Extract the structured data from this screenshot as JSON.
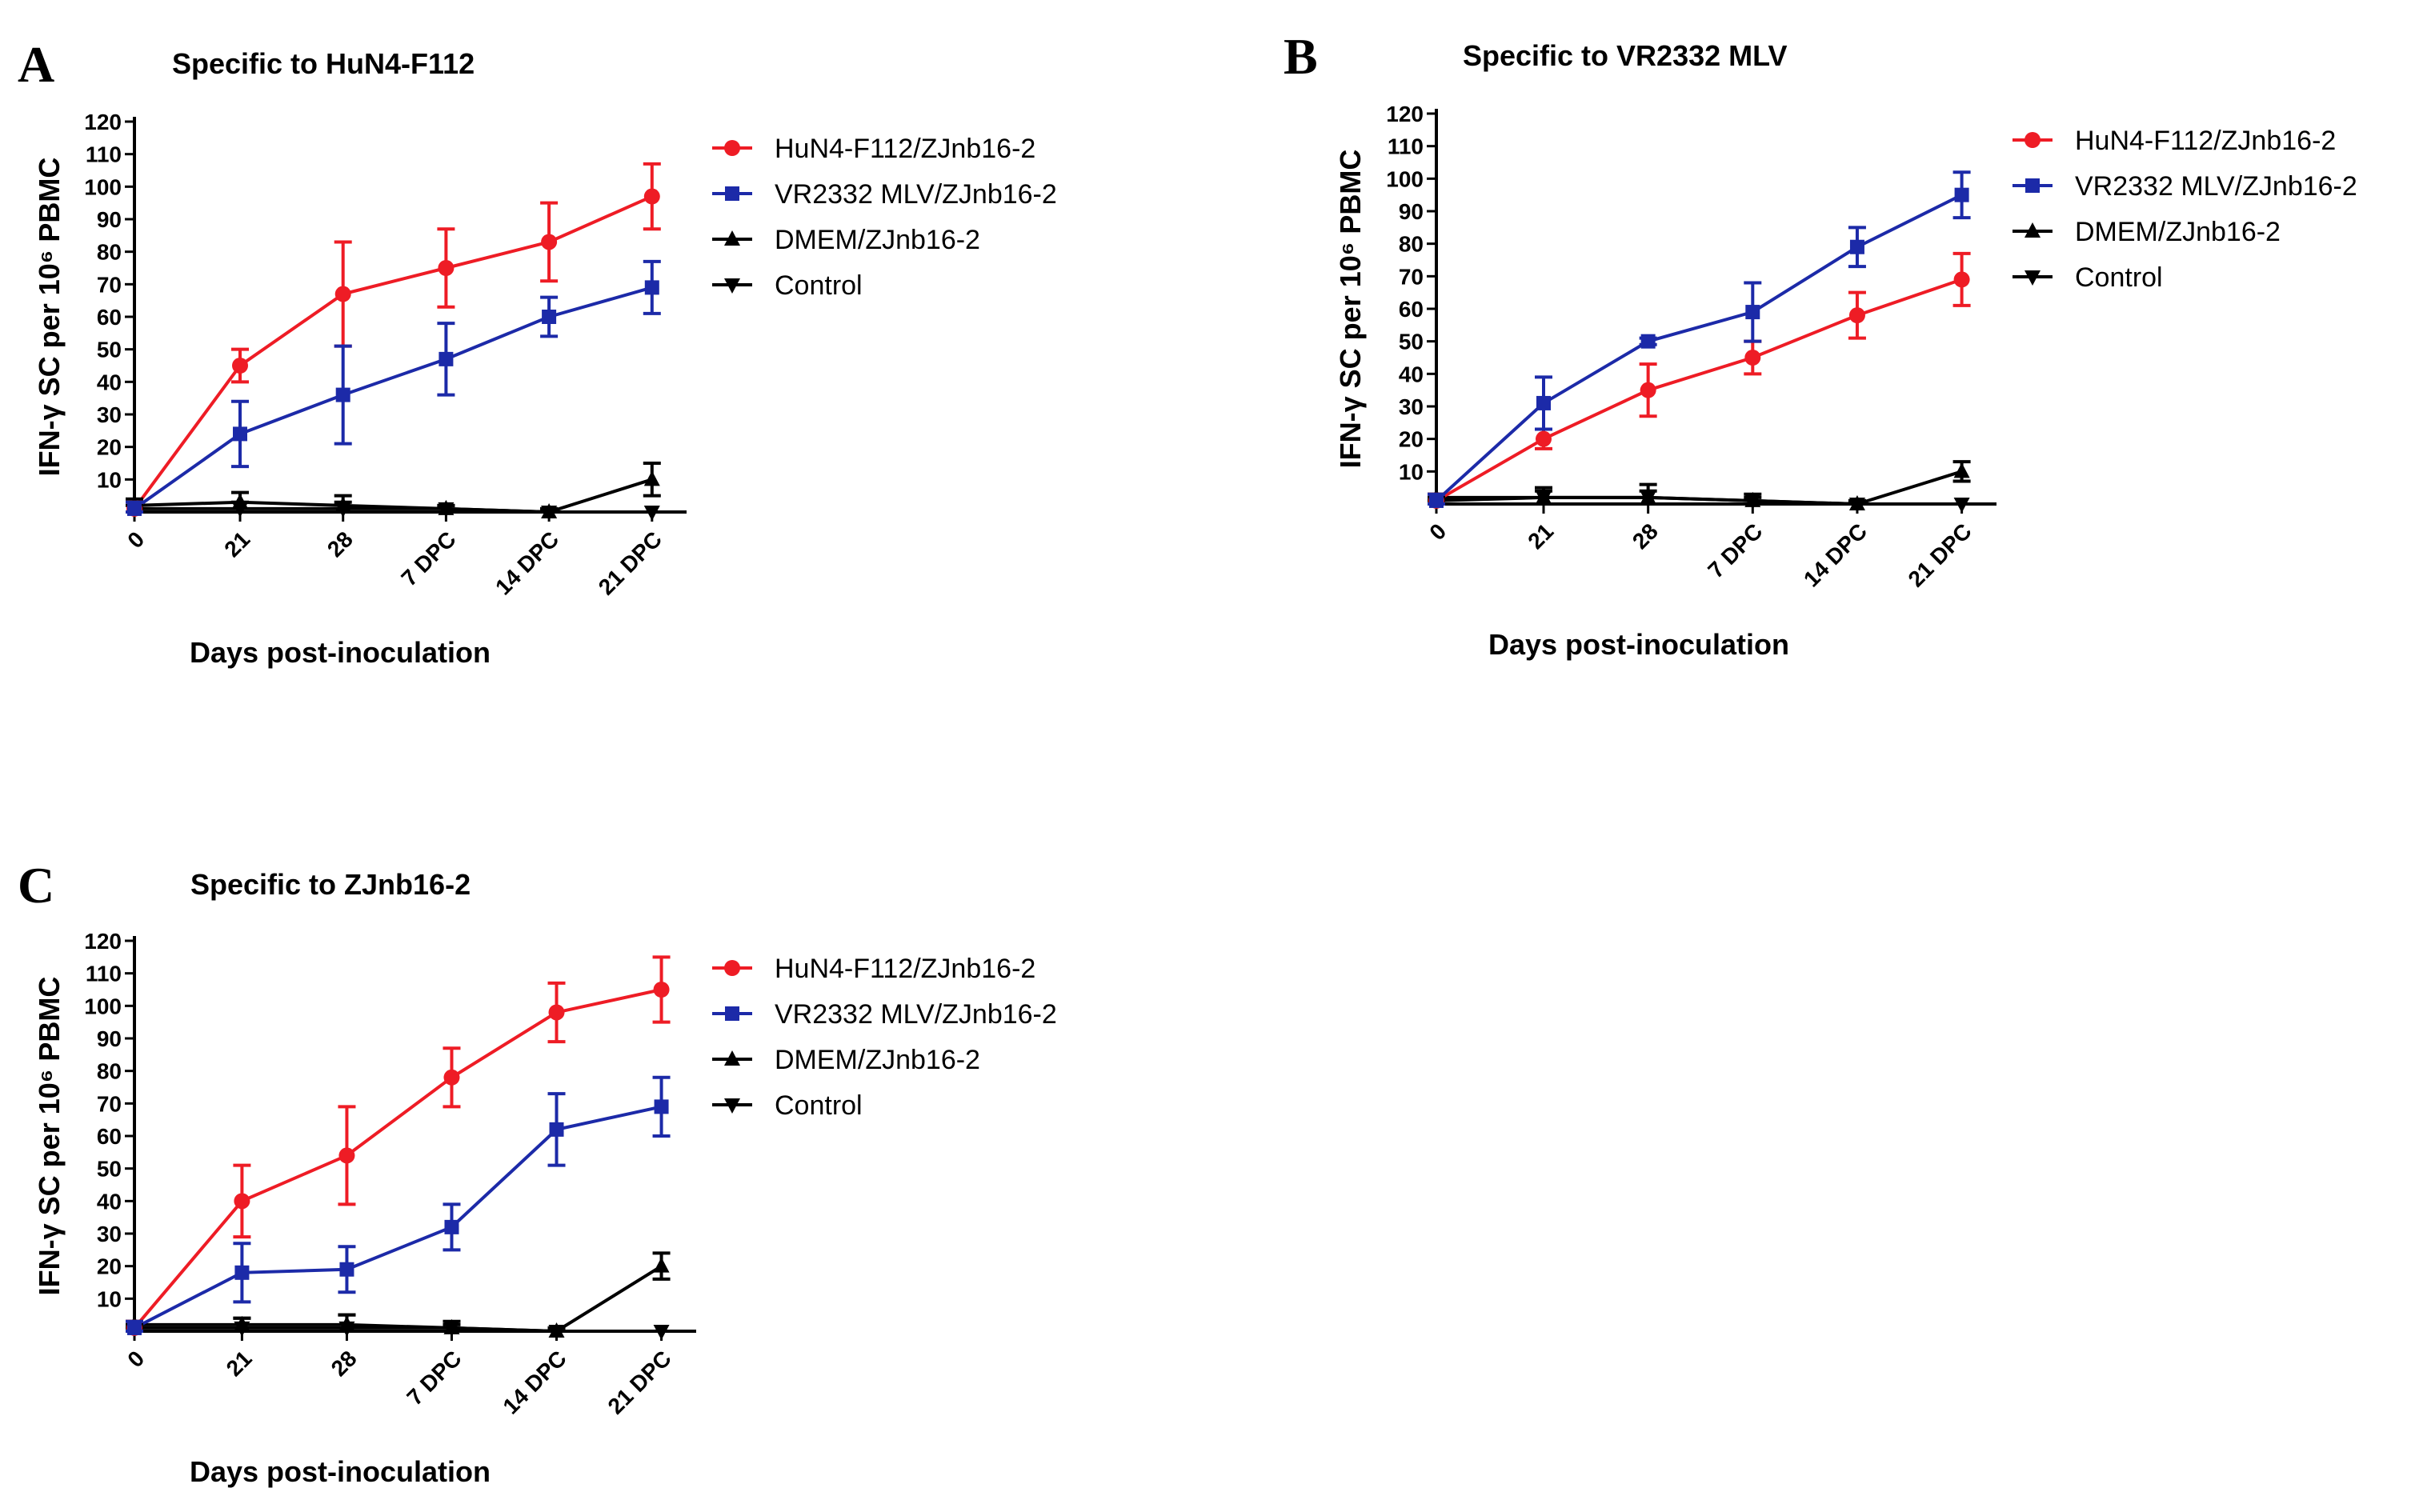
{
  "colors": {
    "HuN4-F112/ZJnb16-2": "#ee1c25",
    "VR2332 MLV/ZJnb16-2": "#1c2aa8",
    "DMEM/ZJnb16-2": "#000000",
    "Control": "#000000"
  },
  "chart_data": [
    {
      "type": "line",
      "panel": "A",
      "title": "Specific to HuN4-F112",
      "xlabel": "Days post-inoculation",
      "ylabel": "IFN-γ SC per 10⁶ PBMC",
      "categories": [
        "0",
        "21",
        "28",
        "7 DPC",
        "14 DPC",
        "21 DPC"
      ],
      "yticks": [
        10,
        20,
        30,
        40,
        50,
        60,
        70,
        80,
        90,
        100,
        110,
        120
      ],
      "ylim": [
        0,
        120
      ],
      "legend_position": "right",
      "series": [
        {
          "name": "HuN4-F112/ZJnb16-2",
          "marker": "circle",
          "values": [
            1,
            45,
            67,
            75,
            83,
            97
          ],
          "errors": [
            2,
            5,
            16,
            12,
            12,
            10
          ]
        },
        {
          "name": "VR2332 MLV/ZJnb16-2",
          "marker": "square",
          "values": [
            1,
            24,
            36,
            47,
            60,
            69
          ],
          "errors": [
            2,
            10,
            15,
            11,
            6,
            8
          ]
        },
        {
          "name": "DMEM/ZJnb16-2",
          "marker": "triangle-up",
          "values": [
            2,
            3,
            2,
            1,
            0,
            10
          ],
          "errors": [
            2,
            3,
            3,
            1,
            1,
            5
          ]
        },
        {
          "name": "Control",
          "marker": "triangle-down",
          "values": [
            1,
            1,
            1,
            1,
            0,
            0
          ],
          "errors": [
            1,
            2,
            2,
            1,
            1,
            0
          ]
        }
      ]
    },
    {
      "type": "line",
      "panel": "B",
      "title": "Specific to VR2332 MLV",
      "xlabel": "Days post-inoculation",
      "ylabel": "IFN-γ SC per 10⁶ PBMC",
      "categories": [
        "0",
        "21",
        "28",
        "7 DPC",
        "14 DPC",
        "21 DPC"
      ],
      "yticks": [
        10,
        20,
        30,
        40,
        50,
        60,
        70,
        80,
        90,
        100,
        110,
        120
      ],
      "ylim": [
        0,
        120
      ],
      "legend_position": "right",
      "series": [
        {
          "name": "HuN4-F112/ZJnb16-2",
          "marker": "circle",
          "values": [
            1,
            20,
            35,
            45,
            58,
            69
          ],
          "errors": [
            2,
            3,
            8,
            5,
            7,
            8
          ]
        },
        {
          "name": "VR2332 MLV/ZJnb16-2",
          "marker": "square",
          "values": [
            1,
            31,
            50,
            59,
            79,
            95
          ],
          "errors": [
            2,
            8,
            1,
            9,
            6,
            7
          ]
        },
        {
          "name": "DMEM/ZJnb16-2",
          "marker": "triangle-up",
          "values": [
            2,
            2,
            2,
            1,
            0,
            10
          ],
          "errors": [
            1,
            2,
            2,
            1,
            1,
            3
          ]
        },
        {
          "name": "Control",
          "marker": "triangle-down",
          "values": [
            1,
            2,
            2,
            1,
            0,
            0
          ],
          "errors": [
            1,
            3,
            4,
            2,
            1,
            0
          ]
        }
      ]
    },
    {
      "type": "line",
      "panel": "C",
      "title": "Specific to ZJnb16-2",
      "xlabel": "Days post-inoculation",
      "ylabel": "IFN-γ SC per 10⁶ PBMC",
      "categories": [
        "0",
        "21",
        "28",
        "7 DPC",
        "14 DPC",
        "21 DPC"
      ],
      "yticks": [
        10,
        20,
        30,
        40,
        50,
        60,
        70,
        80,
        90,
        100,
        110,
        120
      ],
      "ylim": [
        0,
        120
      ],
      "legend_position": "right",
      "series": [
        {
          "name": "HuN4-F112/ZJnb16-2",
          "marker": "circle",
          "values": [
            1,
            40,
            54,
            78,
            98,
            105
          ],
          "errors": [
            2,
            11,
            15,
            9,
            9,
            10
          ]
        },
        {
          "name": "VR2332 MLV/ZJnb16-2",
          "marker": "square",
          "values": [
            1,
            18,
            19,
            32,
            62,
            69
          ],
          "errors": [
            2,
            9,
            7,
            7,
            11,
            9
          ]
        },
        {
          "name": "DMEM/ZJnb16-2",
          "marker": "triangle-up",
          "values": [
            2,
            2,
            2,
            1,
            0,
            20
          ],
          "errors": [
            1,
            2,
            3,
            1,
            1,
            4
          ]
        },
        {
          "name": "Control",
          "marker": "triangle-down",
          "values": [
            1,
            1,
            1,
            1,
            0,
            0
          ],
          "errors": [
            1,
            3,
            4,
            2,
            1,
            0
          ]
        }
      ]
    }
  ]
}
